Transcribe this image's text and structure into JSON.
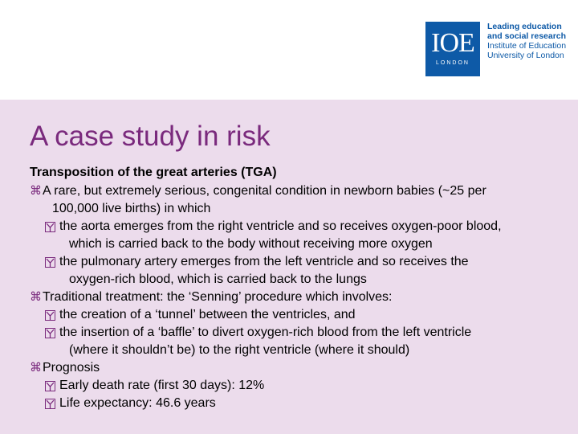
{
  "logo": {
    "mark": "IOE",
    "sub": "LONDON",
    "line1": "Leading education",
    "line2": "and social research",
    "line3": "Institute of Education",
    "line4": "University of London"
  },
  "slide": {
    "title": "A case study in risk",
    "heading": "Transposition of the great arteries (TGA)",
    "bullets": [
      {
        "text": "A rare, but extremely serious, congenital condition in newborn babies (~25 per",
        "text_cont": "100,000 live births) in which",
        "sub": [
          {
            "text": "the aorta emerges from the right ventricle and so receives oxygen-poor blood,",
            "text_cont": "which is carried back to the body without receiving more oxygen"
          },
          {
            "text": "the pulmonary artery emerges from the left ventricle and so receives the",
            "text_cont": "oxygen-rich blood, which is carried back to the lungs"
          }
        ]
      },
      {
        "text": "Traditional treatment: the ‘Senning’ procedure which involves:",
        "sub": [
          {
            "text": "the creation of a ‘tunnel’ between the ventricles, and"
          },
          {
            "text": "the insertion of a ‘baffle’ to divert oxygen-rich blood from the left ventricle",
            "text_cont": "(where it shouldn’t be) to the right ventricle (where it should)"
          }
        ]
      },
      {
        "text": "Prognosis",
        "sub": [
          {
            "text": "Early death rate (first 30 days): 12%"
          },
          {
            "text": "Life expectancy: 46.6 years"
          }
        ]
      }
    ]
  },
  "icons": {
    "level1": "command-key-icon",
    "level2": "checkbox-icon"
  }
}
